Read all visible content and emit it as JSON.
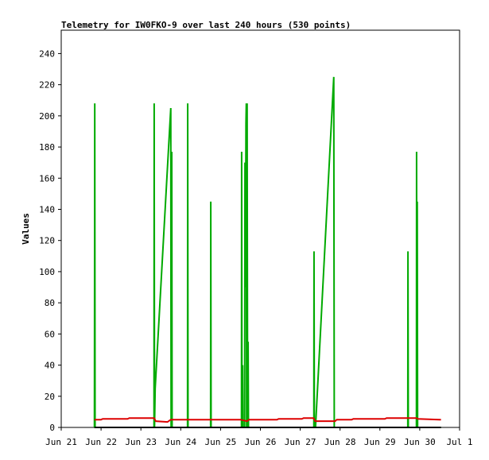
{
  "chart_data": {
    "type": "line",
    "title": "Telemetry for IW0FKO-9 over last 240 hours (530 points)",
    "ylabel": "Values",
    "xlim": [
      0,
      240
    ],
    "ylim": [
      0,
      255
    ],
    "xticks": [
      {
        "value": 0,
        "label": "Jun 21"
      },
      {
        "value": 24,
        "label": "Jun 22"
      },
      {
        "value": 48,
        "label": "Jun 23"
      },
      {
        "value": 72,
        "label": "Jun 24"
      },
      {
        "value": 96,
        "label": "Jun 25"
      },
      {
        "value": 120,
        "label": "Jun 26"
      },
      {
        "value": 144,
        "label": "Jun 27"
      },
      {
        "value": 168,
        "label": "Jun 28"
      },
      {
        "value": 192,
        "label": "Jun 29"
      },
      {
        "value": 216,
        "label": "Jun 30"
      },
      {
        "value": 240,
        "label": "Jul 1"
      }
    ],
    "yticks": [
      0,
      20,
      40,
      60,
      80,
      100,
      120,
      140,
      160,
      180,
      200,
      220,
      240
    ],
    "grid": false,
    "series": [
      {
        "color": "#00aa00",
        "x": [
          20.0,
          20.1,
          20.2,
          20.4,
          55.9,
          56.0,
          56.2,
          56.6,
          66.0,
          66.2,
          66.6,
          66.8,
          76.1,
          76.2,
          76.4,
          90.0,
          90.1,
          90.3,
          108.6,
          108.7,
          108.9,
          109.3,
          109.5,
          110.5,
          110.7,
          111.0,
          111.3,
          111.5,
          111.7,
          112.0,
          112.3,
          112.6,
          112.8,
          152.2,
          152.3,
          152.5,
          153.2,
          164.2,
          164.5,
          208.8,
          208.9,
          209.1,
          214.0,
          214.1,
          214.3,
          214.5,
          214.7,
          228.8
        ],
        "values": [
          0,
          97,
          208,
          0,
          0,
          208,
          0,
          25,
          205,
          0,
          177,
          0,
          0,
          208,
          0,
          0,
          145,
          0,
          0,
          177,
          0,
          40,
          0,
          0,
          170,
          90,
          195,
          208,
          0,
          208,
          0,
          55,
          0,
          0,
          113,
          0,
          0,
          225,
          0,
          0,
          113,
          0,
          0,
          177,
          0,
          145,
          0,
          0
        ]
      },
      {
        "color": "#dd0000",
        "x": [
          20,
          24,
          25,
          40,
          41,
          56,
          57,
          64,
          66,
          108,
          112,
          113,
          130,
          131,
          145,
          146,
          152,
          153,
          165,
          166,
          175,
          176,
          195,
          196,
          214,
          215,
          228,
          228.8
        ],
        "values": [
          5,
          5,
          5.5,
          5.5,
          6,
          6,
          4,
          3.5,
          5,
          5,
          4,
          5,
          5,
          5.5,
          5.5,
          6,
          6,
          4,
          4,
          5,
          5,
          5.5,
          5.5,
          6,
          6,
          5.5,
          5,
          5
        ]
      },
      {
        "color": "#000000",
        "x": [
          20,
          228.8
        ],
        "values": [
          0,
          0
        ]
      }
    ]
  }
}
